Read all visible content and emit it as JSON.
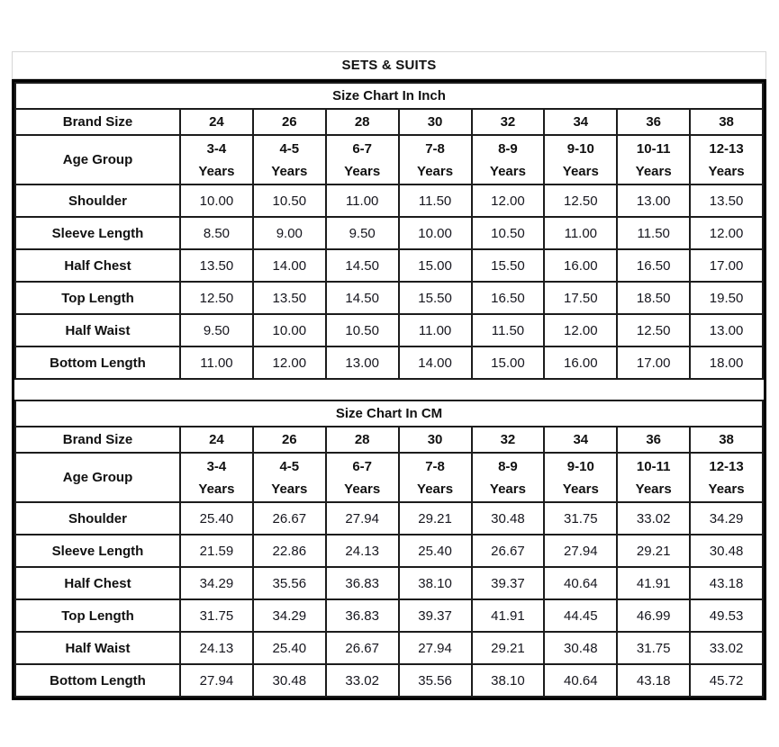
{
  "page_title": "SETS & SUITS",
  "tables": [
    {
      "title": "Size Chart In Inch",
      "header_label": "Brand Size",
      "brand_sizes": [
        "24",
        "26",
        "28",
        "30",
        "32",
        "34",
        "36",
        "38"
      ],
      "age_label": "Age Group",
      "age_groups": [
        {
          "range": "3-4",
          "unit": "Years"
        },
        {
          "range": "4-5",
          "unit": "Years"
        },
        {
          "range": "6-7",
          "unit": "Years"
        },
        {
          "range": "7-8",
          "unit": "Years"
        },
        {
          "range": "8-9",
          "unit": "Years"
        },
        {
          "range": "9-10",
          "unit": "Years"
        },
        {
          "range": "10-11",
          "unit": "Years"
        },
        {
          "range": "12-13",
          "unit": "Years"
        }
      ],
      "rows": [
        {
          "label": "Shoulder",
          "values": [
            "10.00",
            "10.50",
            "11.00",
            "11.50",
            "12.00",
            "12.50",
            "13.00",
            "13.50"
          ]
        },
        {
          "label": "Sleeve Length",
          "values": [
            "8.50",
            "9.00",
            "9.50",
            "10.00",
            "10.50",
            "11.00",
            "11.50",
            "12.00"
          ]
        },
        {
          "label": "Half Chest",
          "values": [
            "13.50",
            "14.00",
            "14.50",
            "15.00",
            "15.50",
            "16.00",
            "16.50",
            "17.00"
          ]
        },
        {
          "label": "Top Length",
          "values": [
            "12.50",
            "13.50",
            "14.50",
            "15.50",
            "16.50",
            "17.50",
            "18.50",
            "19.50"
          ]
        },
        {
          "label": "Half Waist",
          "values": [
            "9.50",
            "10.00",
            "10.50",
            "11.00",
            "11.50",
            "12.00",
            "12.50",
            "13.00"
          ]
        },
        {
          "label": "Bottom Length",
          "values": [
            "11.00",
            "12.00",
            "13.00",
            "14.00",
            "15.00",
            "16.00",
            "17.00",
            "18.00"
          ]
        }
      ]
    },
    {
      "title": "Size Chart In CM",
      "header_label": "Brand Size",
      "brand_sizes": [
        "24",
        "26",
        "28",
        "30",
        "32",
        "34",
        "36",
        "38"
      ],
      "age_label": "Age Group",
      "age_groups": [
        {
          "range": "3-4",
          "unit": "Years"
        },
        {
          "range": "4-5",
          "unit": "Years"
        },
        {
          "range": "6-7",
          "unit": "Years"
        },
        {
          "range": "7-8",
          "unit": "Years"
        },
        {
          "range": "8-9",
          "unit": "Years"
        },
        {
          "range": "9-10",
          "unit": "Years"
        },
        {
          "range": "10-11",
          "unit": "Years"
        },
        {
          "range": "12-13",
          "unit": "Years"
        }
      ],
      "rows": [
        {
          "label": "Shoulder",
          "values": [
            "25.40",
            "26.67",
            "27.94",
            "29.21",
            "30.48",
            "31.75",
            "33.02",
            "34.29"
          ]
        },
        {
          "label": "Sleeve Length",
          "values": [
            "21.59",
            "22.86",
            "24.13",
            "25.40",
            "26.67",
            "27.94",
            "29.21",
            "30.48"
          ]
        },
        {
          "label": "Half Chest",
          "values": [
            "34.29",
            "35.56",
            "36.83",
            "38.10",
            "39.37",
            "40.64",
            "41.91",
            "43.18"
          ]
        },
        {
          "label": "Top Length",
          "values": [
            "31.75",
            "34.29",
            "36.83",
            "39.37",
            "41.91",
            "44.45",
            "46.99",
            "49.53"
          ]
        },
        {
          "label": "Half Waist",
          "values": [
            "24.13",
            "25.40",
            "26.67",
            "27.94",
            "29.21",
            "30.48",
            "31.75",
            "33.02"
          ]
        },
        {
          "label": "Bottom Length",
          "values": [
            "27.94",
            "30.48",
            "33.02",
            "35.56",
            "38.10",
            "40.64",
            "43.18",
            "45.72"
          ]
        }
      ]
    }
  ]
}
